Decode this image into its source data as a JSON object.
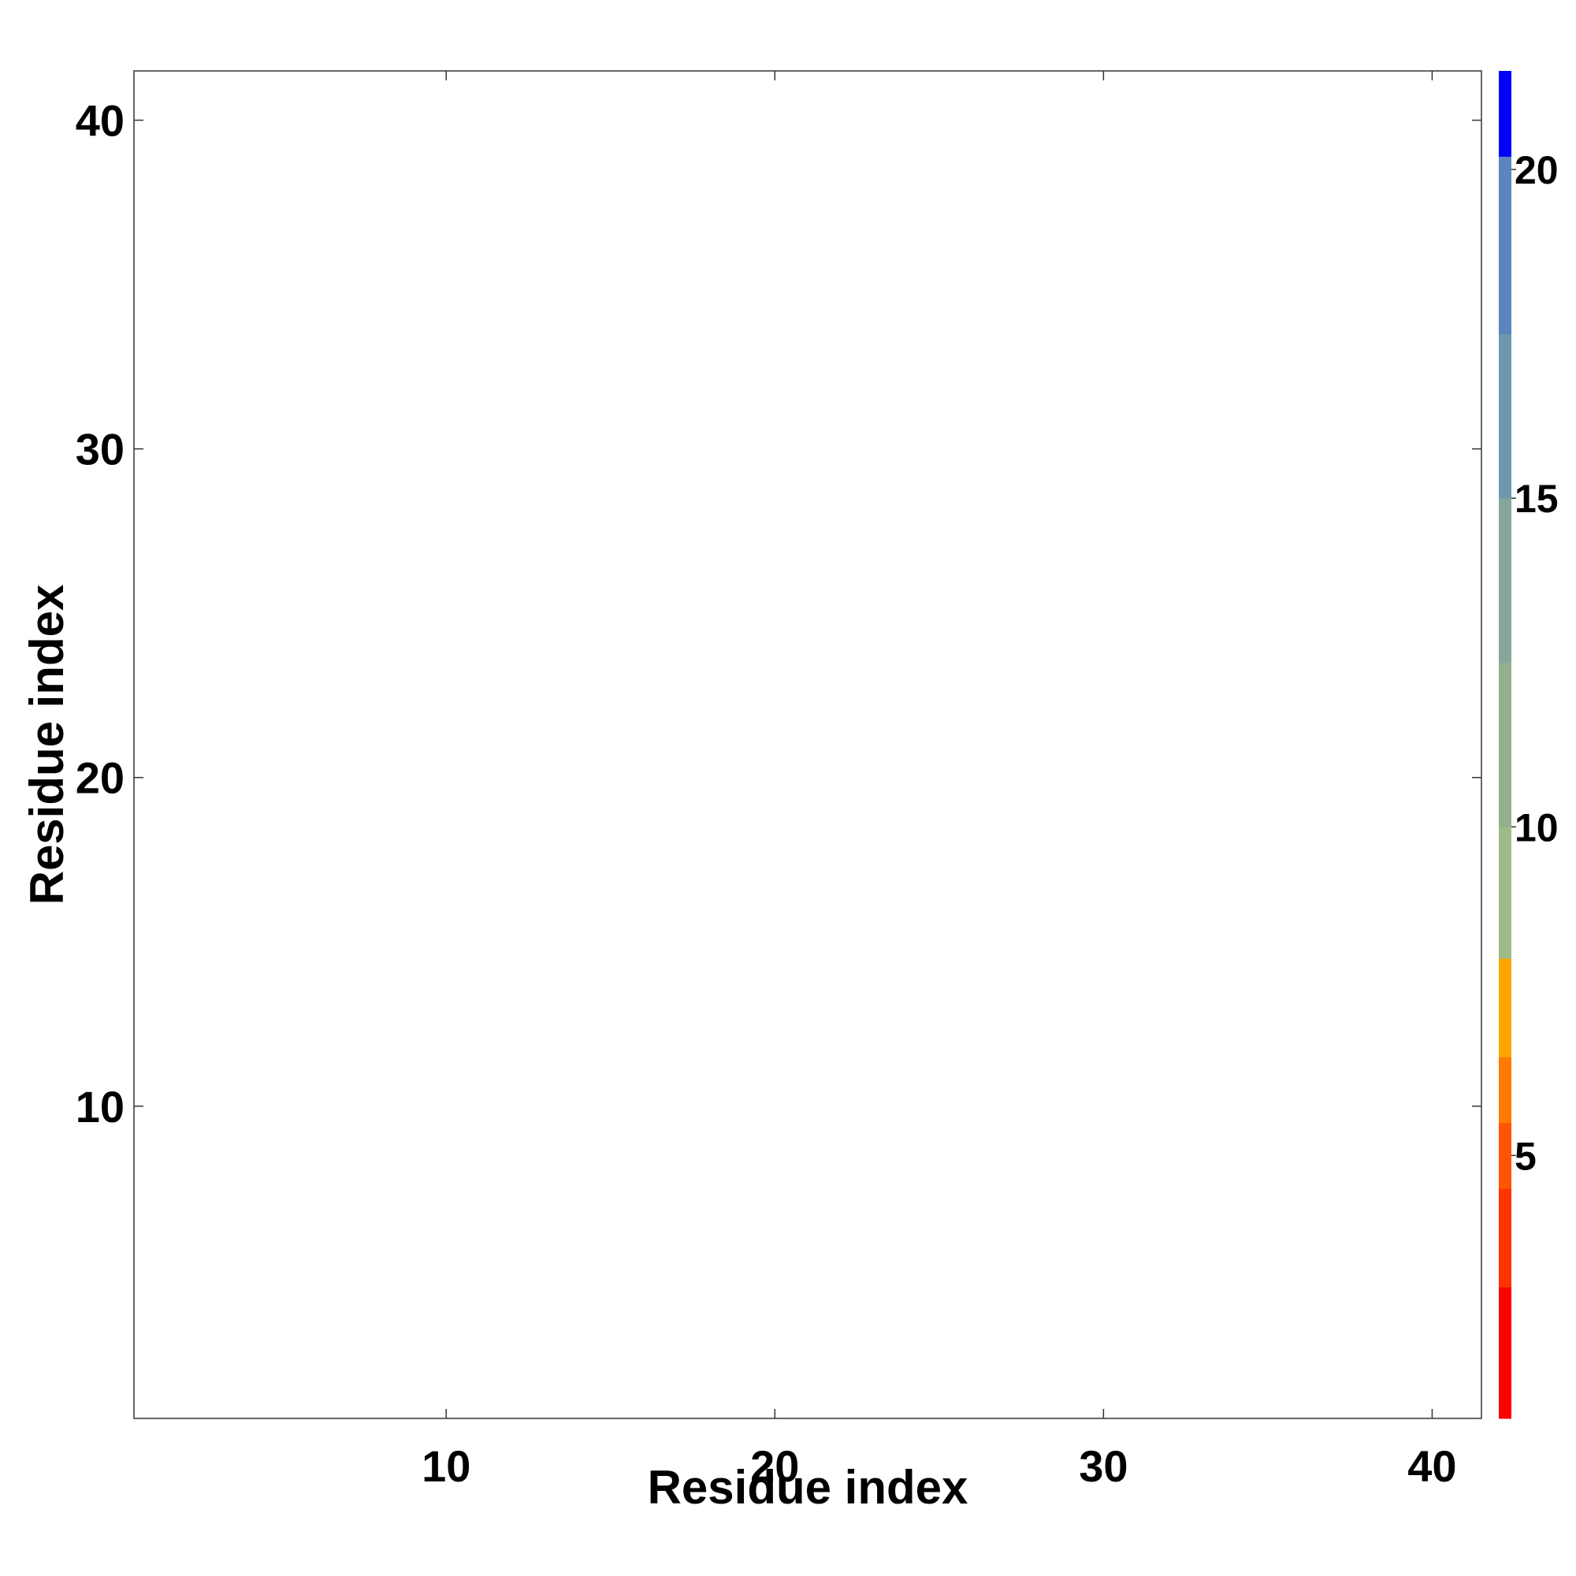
{
  "chart_data": {
    "type": "heatmap",
    "title": "",
    "xlabel": "Residue index",
    "ylabel": "Residue index",
    "n": 41,
    "xlim": [
      0.5,
      41.5
    ],
    "ylim": [
      0.5,
      41.5
    ],
    "x_ticks": [
      10,
      20,
      30,
      40
    ],
    "y_ticks": [
      10,
      20,
      30,
      40
    ],
    "colorbar": {
      "range": [
        1,
        21.5
      ],
      "ticks": [
        5,
        10,
        15,
        20
      ],
      "bins": [
        {
          "from": 1,
          "to": 3,
          "color": "#ff0000"
        },
        {
          "from": 3,
          "to": 4.5,
          "color": "#ff3300"
        },
        {
          "from": 4.5,
          "to": 5.5,
          "color": "#ff5500"
        },
        {
          "from": 5.5,
          "to": 6.5,
          "color": "#ff7a00"
        },
        {
          "from": 6.5,
          "to": 8,
          "color": "#ffa500"
        },
        {
          "from": 8,
          "to": 10,
          "color": "#9fbc88"
        },
        {
          "from": 10,
          "to": 12.5,
          "color": "#93b08c"
        },
        {
          "from": 12.5,
          "to": 15,
          "color": "#86a69a"
        },
        {
          "from": 15,
          "to": 17.5,
          "color": "#6e98ab"
        },
        {
          "from": 17.5,
          "to": 20.2,
          "color": "#5b86bd"
        },
        {
          "from": 20.2,
          "to": 21.5,
          "color": "#0000ff"
        }
      ]
    },
    "values_note": "",
    "grid": false,
    "legend": "colorbar-right"
  }
}
